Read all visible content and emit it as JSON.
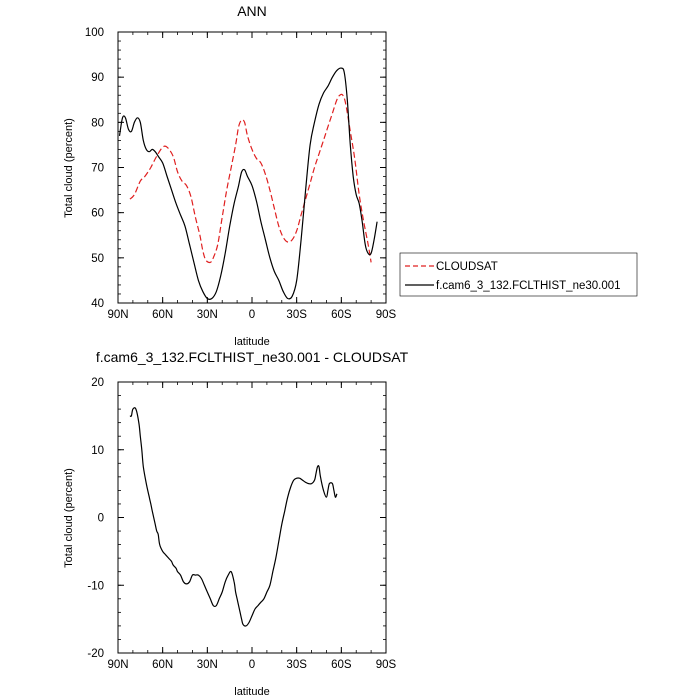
{
  "chart_data": [
    {
      "type": "line",
      "title": "ANN",
      "xlabel": "latitude",
      "ylabel": "Total cloud (percent)",
      "xlim": [
        90,
        -90
      ],
      "ylim": [
        40,
        100
      ],
      "xticks": [
        90,
        60,
        30,
        0,
        -30,
        -60,
        -90
      ],
      "xtick_labels": [
        "90N",
        "60N",
        "30N",
        "0",
        "30S",
        "60S",
        "90S"
      ],
      "yticks": [
        40,
        50,
        60,
        70,
        80,
        90,
        100
      ],
      "ytick_labels": [
        "40",
        "50",
        "60",
        "70",
        "80",
        "90",
        "100"
      ],
      "legend": "right",
      "series": [
        {
          "name": "CLOUDSAT",
          "color": "#e02020",
          "dash": true,
          "points": [
            [
              82,
              63
            ],
            [
              79,
              64
            ],
            [
              75,
              67
            ],
            [
              72,
              68
            ],
            [
              68,
              70
            ],
            [
              64,
              72.5
            ],
            [
              60,
              74.5
            ],
            [
              57,
              74.5
            ],
            [
              53,
              72.5
            ],
            [
              50,
              69
            ],
            [
              47,
              67
            ],
            [
              44,
              66
            ],
            [
              41,
              63.5
            ],
            [
              38,
              59
            ],
            [
              35,
              55
            ],
            [
              33,
              51.5
            ],
            [
              31,
              49.5
            ],
            [
              28,
              49
            ],
            [
              26,
              50
            ],
            [
              23,
              53
            ],
            [
              20,
              59
            ],
            [
              17,
              65
            ],
            [
              14,
              70
            ],
            [
              11,
              75
            ],
            [
              9,
              79
            ],
            [
              7,
              80.5
            ],
            [
              5,
              80
            ],
            [
              3,
              77
            ],
            [
              0,
              74
            ],
            [
              -3,
              72
            ],
            [
              -6,
              71
            ],
            [
              -9,
              68.5
            ],
            [
              -12,
              65
            ],
            [
              -15,
              61
            ],
            [
              -18,
              57
            ],
            [
              -21,
              54.5
            ],
            [
              -24,
              53.5
            ],
            [
              -27,
              54
            ],
            [
              -30,
              56
            ],
            [
              -33,
              59.5
            ],
            [
              -36,
              63
            ],
            [
              -39,
              66.5
            ],
            [
              -42,
              70
            ],
            [
              -45,
              73
            ],
            [
              -48,
              76
            ],
            [
              -51,
              79
            ],
            [
              -54,
              82
            ],
            [
              -57,
              85
            ],
            [
              -59,
              86
            ],
            [
              -61,
              86
            ],
            [
              -63,
              84
            ],
            [
              -66,
              78
            ],
            [
              -69,
              72
            ],
            [
              -72,
              64
            ],
            [
              -75,
              58
            ],
            [
              -78,
              53
            ],
            [
              -80,
              49
            ]
          ]
        },
        {
          "name": "f.cam6_3_132.FCLTHIST_ne30.001",
          "color": "#000000",
          "dash": false,
          "points": [
            [
              89,
              77
            ],
            [
              87,
              81
            ],
            [
              85,
              81
            ],
            [
              83,
              78.5
            ],
            [
              81,
              78
            ],
            [
              79,
              80
            ],
            [
              77,
              81
            ],
            [
              75,
              80
            ],
            [
              73,
              76
            ],
            [
              71,
              74
            ],
            [
              69,
              73.5
            ],
            [
              67,
              74
            ],
            [
              65,
              73.5
            ],
            [
              63,
              72.5
            ],
            [
              60,
              71
            ],
            [
              57,
              68
            ],
            [
              54,
              65
            ],
            [
              51,
              62
            ],
            [
              48,
              59.5
            ],
            [
              45,
              57
            ],
            [
              42,
              53
            ],
            [
              39,
              49
            ],
            [
              36,
              45
            ],
            [
              33,
              42.5
            ],
            [
              30,
              41
            ],
            [
              27,
              41
            ],
            [
              24,
              42.5
            ],
            [
              21,
              46
            ],
            [
              18,
              51
            ],
            [
              15,
              57
            ],
            [
              12,
              62
            ],
            [
              9,
              66
            ],
            [
              7,
              69
            ],
            [
              5,
              69.5
            ],
            [
              3,
              68
            ],
            [
              0,
              66
            ],
            [
              -3,
              62.5
            ],
            [
              -6,
              58
            ],
            [
              -9,
              54
            ],
            [
              -12,
              50
            ],
            [
              -15,
              47
            ],
            [
              -18,
              45
            ],
            [
              -21,
              42.5
            ],
            [
              -24,
              41
            ],
            [
              -27,
              41.5
            ],
            [
              -30,
              45
            ],
            [
              -33,
              54
            ],
            [
              -36,
              65
            ],
            [
              -39,
              75
            ],
            [
              -42,
              80
            ],
            [
              -45,
              84
            ],
            [
              -48,
              86.5
            ],
            [
              -51,
              88
            ],
            [
              -54,
              90
            ],
            [
              -57,
              91.5
            ],
            [
              -60,
              92
            ],
            [
              -62,
              91
            ],
            [
              -64,
              85
            ],
            [
              -66,
              75
            ],
            [
              -68,
              68
            ],
            [
              -70,
              64
            ],
            [
              -72,
              62
            ],
            [
              -74,
              58
            ],
            [
              -76,
              53
            ],
            [
              -78,
              51
            ],
            [
              -80,
              51
            ],
            [
              -82,
              54
            ],
            [
              -84,
              58
            ]
          ]
        }
      ]
    },
    {
      "type": "line",
      "title": "f.cam6_3_132.FCLTHIST_ne30.001 - CLOUDSAT",
      "xlabel": "latitude",
      "ylabel": "Total cloud (percent)",
      "xlim": [
        90,
        -90
      ],
      "ylim": [
        -20,
        20
      ],
      "xticks": [
        90,
        60,
        30,
        0,
        -30,
        -60,
        -90
      ],
      "xtick_labels": [
        "90N",
        "60N",
        "30N",
        "0",
        "30S",
        "60S",
        "90S"
      ],
      "yticks": [
        -20,
        -10,
        0,
        10,
        20
      ],
      "ytick_labels": [
        "-20",
        "-10",
        "0",
        "10",
        "20"
      ],
      "series": [
        {
          "color": "#000000",
          "dash": false,
          "points": [
            [
              82,
              15
            ],
            [
              81,
              15
            ],
            [
              80,
              16
            ],
            [
              78,
              16
            ],
            [
              76,
              14
            ],
            [
              75,
              12
            ],
            [
              74,
              10
            ],
            [
              73,
              7.5
            ],
            [
              71,
              5
            ],
            [
              69,
              3
            ],
            [
              68,
              2
            ],
            [
              67,
              1
            ],
            [
              66,
              0
            ],
            [
              65,
              -1
            ],
            [
              64,
              -2
            ],
            [
              63,
              -2.5
            ],
            [
              62,
              -4
            ],
            [
              60,
              -5
            ],
            [
              58,
              -5.5
            ],
            [
              56,
              -6
            ],
            [
              54,
              -6.5
            ],
            [
              53,
              -7
            ],
            [
              51,
              -7.5
            ],
            [
              50,
              -8
            ],
            [
              48,
              -8.5
            ],
            [
              46,
              -9.5
            ],
            [
              44,
              -9.8
            ],
            [
              42,
              -9.5
            ],
            [
              40,
              -8.5
            ],
            [
              38,
              -8.5
            ],
            [
              36,
              -8.5
            ],
            [
              34,
              -9
            ],
            [
              32,
              -10
            ],
            [
              30,
              -11
            ],
            [
              28,
              -12
            ],
            [
              26,
              -13
            ],
            [
              24,
              -13
            ],
            [
              22,
              -12
            ],
            [
              20,
              -11
            ],
            [
              18,
              -9.5
            ],
            [
              16,
              -8.5
            ],
            [
              14,
              -8
            ],
            [
              12,
              -9.5
            ],
            [
              11,
              -11
            ],
            [
              10,
              -12
            ],
            [
              9,
              -13
            ],
            [
              8,
              -14
            ],
            [
              7,
              -15
            ],
            [
              6,
              -15.8
            ],
            [
              4,
              -16
            ],
            [
              2,
              -15.5
            ],
            [
              0,
              -14.5
            ],
            [
              -2,
              -13.5
            ],
            [
              -4,
              -13
            ],
            [
              -6,
              -12.5
            ],
            [
              -8,
              -12
            ],
            [
              -10,
              -11
            ],
            [
              -12,
              -10
            ],
            [
              -14,
              -8
            ],
            [
              -16,
              -6
            ],
            [
              -18,
              -3.5
            ],
            [
              -20,
              -1
            ],
            [
              -22,
              1
            ],
            [
              -24,
              3
            ],
            [
              -26,
              4.5
            ],
            [
              -28,
              5.5
            ],
            [
              -30,
              5.8
            ],
            [
              -32,
              5.8
            ],
            [
              -34,
              5.5
            ],
            [
              -36,
              5.2
            ],
            [
              -38,
              5
            ],
            [
              -40,
              5
            ],
            [
              -42,
              5.5
            ],
            [
              -43,
              6.5
            ],
            [
              -44,
              7.5
            ],
            [
              -45,
              7.5
            ],
            [
              -46,
              6
            ],
            [
              -48,
              4
            ],
            [
              -50,
              3
            ],
            [
              -51,
              4
            ],
            [
              -52,
              5
            ],
            [
              -54,
              5
            ],
            [
              -55,
              4
            ],
            [
              -56,
              3
            ],
            [
              -57,
              3.5
            ]
          ]
        }
      ]
    }
  ]
}
